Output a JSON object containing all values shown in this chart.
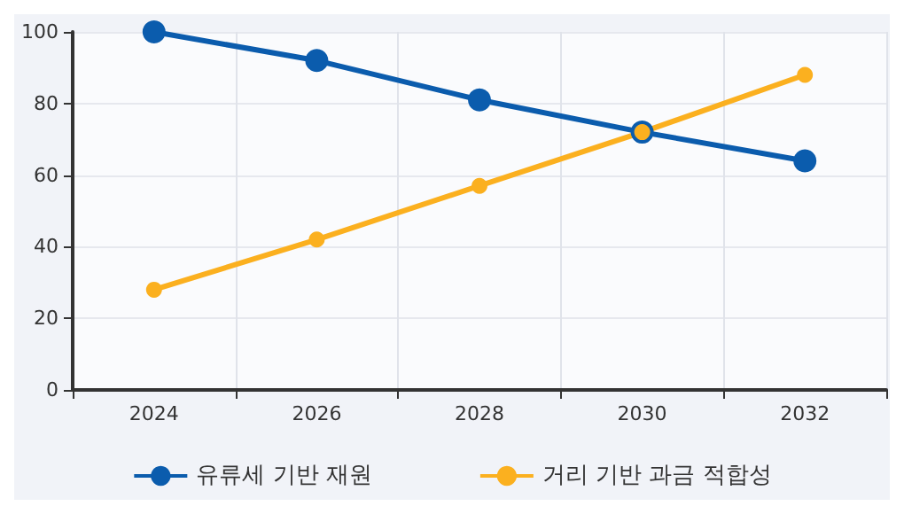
{
  "chart_data": {
    "type": "line",
    "categories": [
      "2024",
      "2026",
      "2028",
      "2030",
      "2032"
    ],
    "series": [
      {
        "name": "유류세 기반 재원",
        "color": "#0b5cad",
        "values": [
          100,
          92,
          81,
          72,
          64
        ]
      },
      {
        "name": "거리 기반 과금 적합성",
        "color": "#fbb01f",
        "values": [
          28,
          42,
          57,
          72,
          88
        ]
      }
    ],
    "ylim": [
      0,
      100
    ],
    "yticks": [
      0,
      20,
      40,
      60,
      80,
      100
    ],
    "grid": true,
    "legend": "bottom",
    "marker": "circle",
    "line_style": "solid"
  }
}
